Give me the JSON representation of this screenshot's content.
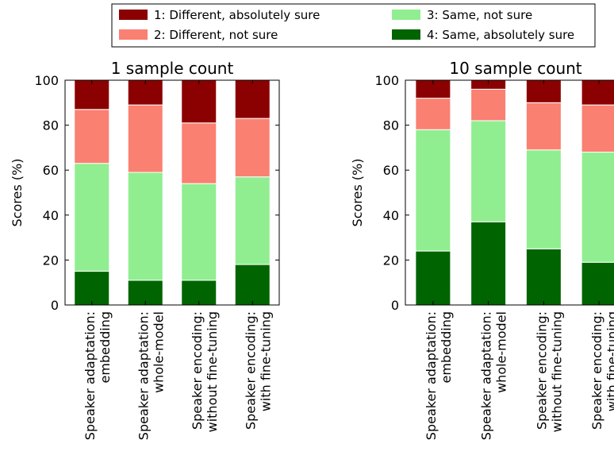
{
  "colors": {
    "cat1": "#8b0000",
    "cat2": "#fa8072",
    "cat3": "#90ee90",
    "cat4": "#006400"
  },
  "legend": {
    "placement": "top-center",
    "entries": [
      {
        "key": "cat1",
        "label": "1: Different, absolutely sure"
      },
      {
        "key": "cat2",
        "label": "2: Different, not sure"
      },
      {
        "key": "cat3",
        "label": "3: Same, not sure"
      },
      {
        "key": "cat4",
        "label": "4: Same, absolutely sure"
      }
    ]
  },
  "chart_data": [
    {
      "type": "bar",
      "stacked": true,
      "title": "1 sample count",
      "ylabel": "Scores (%)",
      "xlabel": "",
      "ylim": [
        0,
        100
      ],
      "yticks": [
        0,
        20,
        40,
        60,
        80,
        100
      ],
      "grid": false,
      "categories": [
        [
          "Speaker adaptation:",
          "embedding"
        ],
        [
          "Speaker adaptation:",
          "whole-model"
        ],
        [
          "Speaker encoding:",
          "without fine-tuning"
        ],
        [
          "Speaker encoding:",
          "with fine-tuning"
        ]
      ],
      "series": [
        {
          "name": "4: Same, absolutely sure",
          "key": "cat4",
          "values": [
            15,
            11,
            11,
            18
          ]
        },
        {
          "name": "3: Same, not sure",
          "key": "cat3",
          "values": [
            48,
            48,
            43,
            39
          ]
        },
        {
          "name": "2: Different, not sure",
          "key": "cat2",
          "values": [
            24,
            30,
            27,
            26
          ]
        },
        {
          "name": "1: Different, absolutely sure",
          "key": "cat1",
          "values": [
            13,
            11,
            19,
            17
          ]
        }
      ]
    },
    {
      "type": "bar",
      "stacked": true,
      "title": "10 sample count",
      "ylabel": "Scores (%)",
      "xlabel": "",
      "ylim": [
        0,
        100
      ],
      "yticks": [
        0,
        20,
        40,
        60,
        80,
        100
      ],
      "grid": false,
      "categories": [
        [
          "Speaker adaptation:",
          "embedding"
        ],
        [
          "Speaker adaptation:",
          "whole-model"
        ],
        [
          "Speaker encoding:",
          "without fine-tuning"
        ],
        [
          "Speaker encoding:",
          "with fine-tuning"
        ]
      ],
      "series": [
        {
          "name": "4: Same, absolutely sure",
          "key": "cat4",
          "values": [
            24,
            37,
            25,
            19
          ]
        },
        {
          "name": "3: Same, not sure",
          "key": "cat3",
          "values": [
            54,
            45,
            44,
            49
          ]
        },
        {
          "name": "2: Different, not sure",
          "key": "cat2",
          "values": [
            14,
            14,
            21,
            21
          ]
        },
        {
          "name": "1: Different, absolutely sure",
          "key": "cat1",
          "values": [
            8,
            4,
            10,
            11
          ]
        }
      ]
    }
  ]
}
